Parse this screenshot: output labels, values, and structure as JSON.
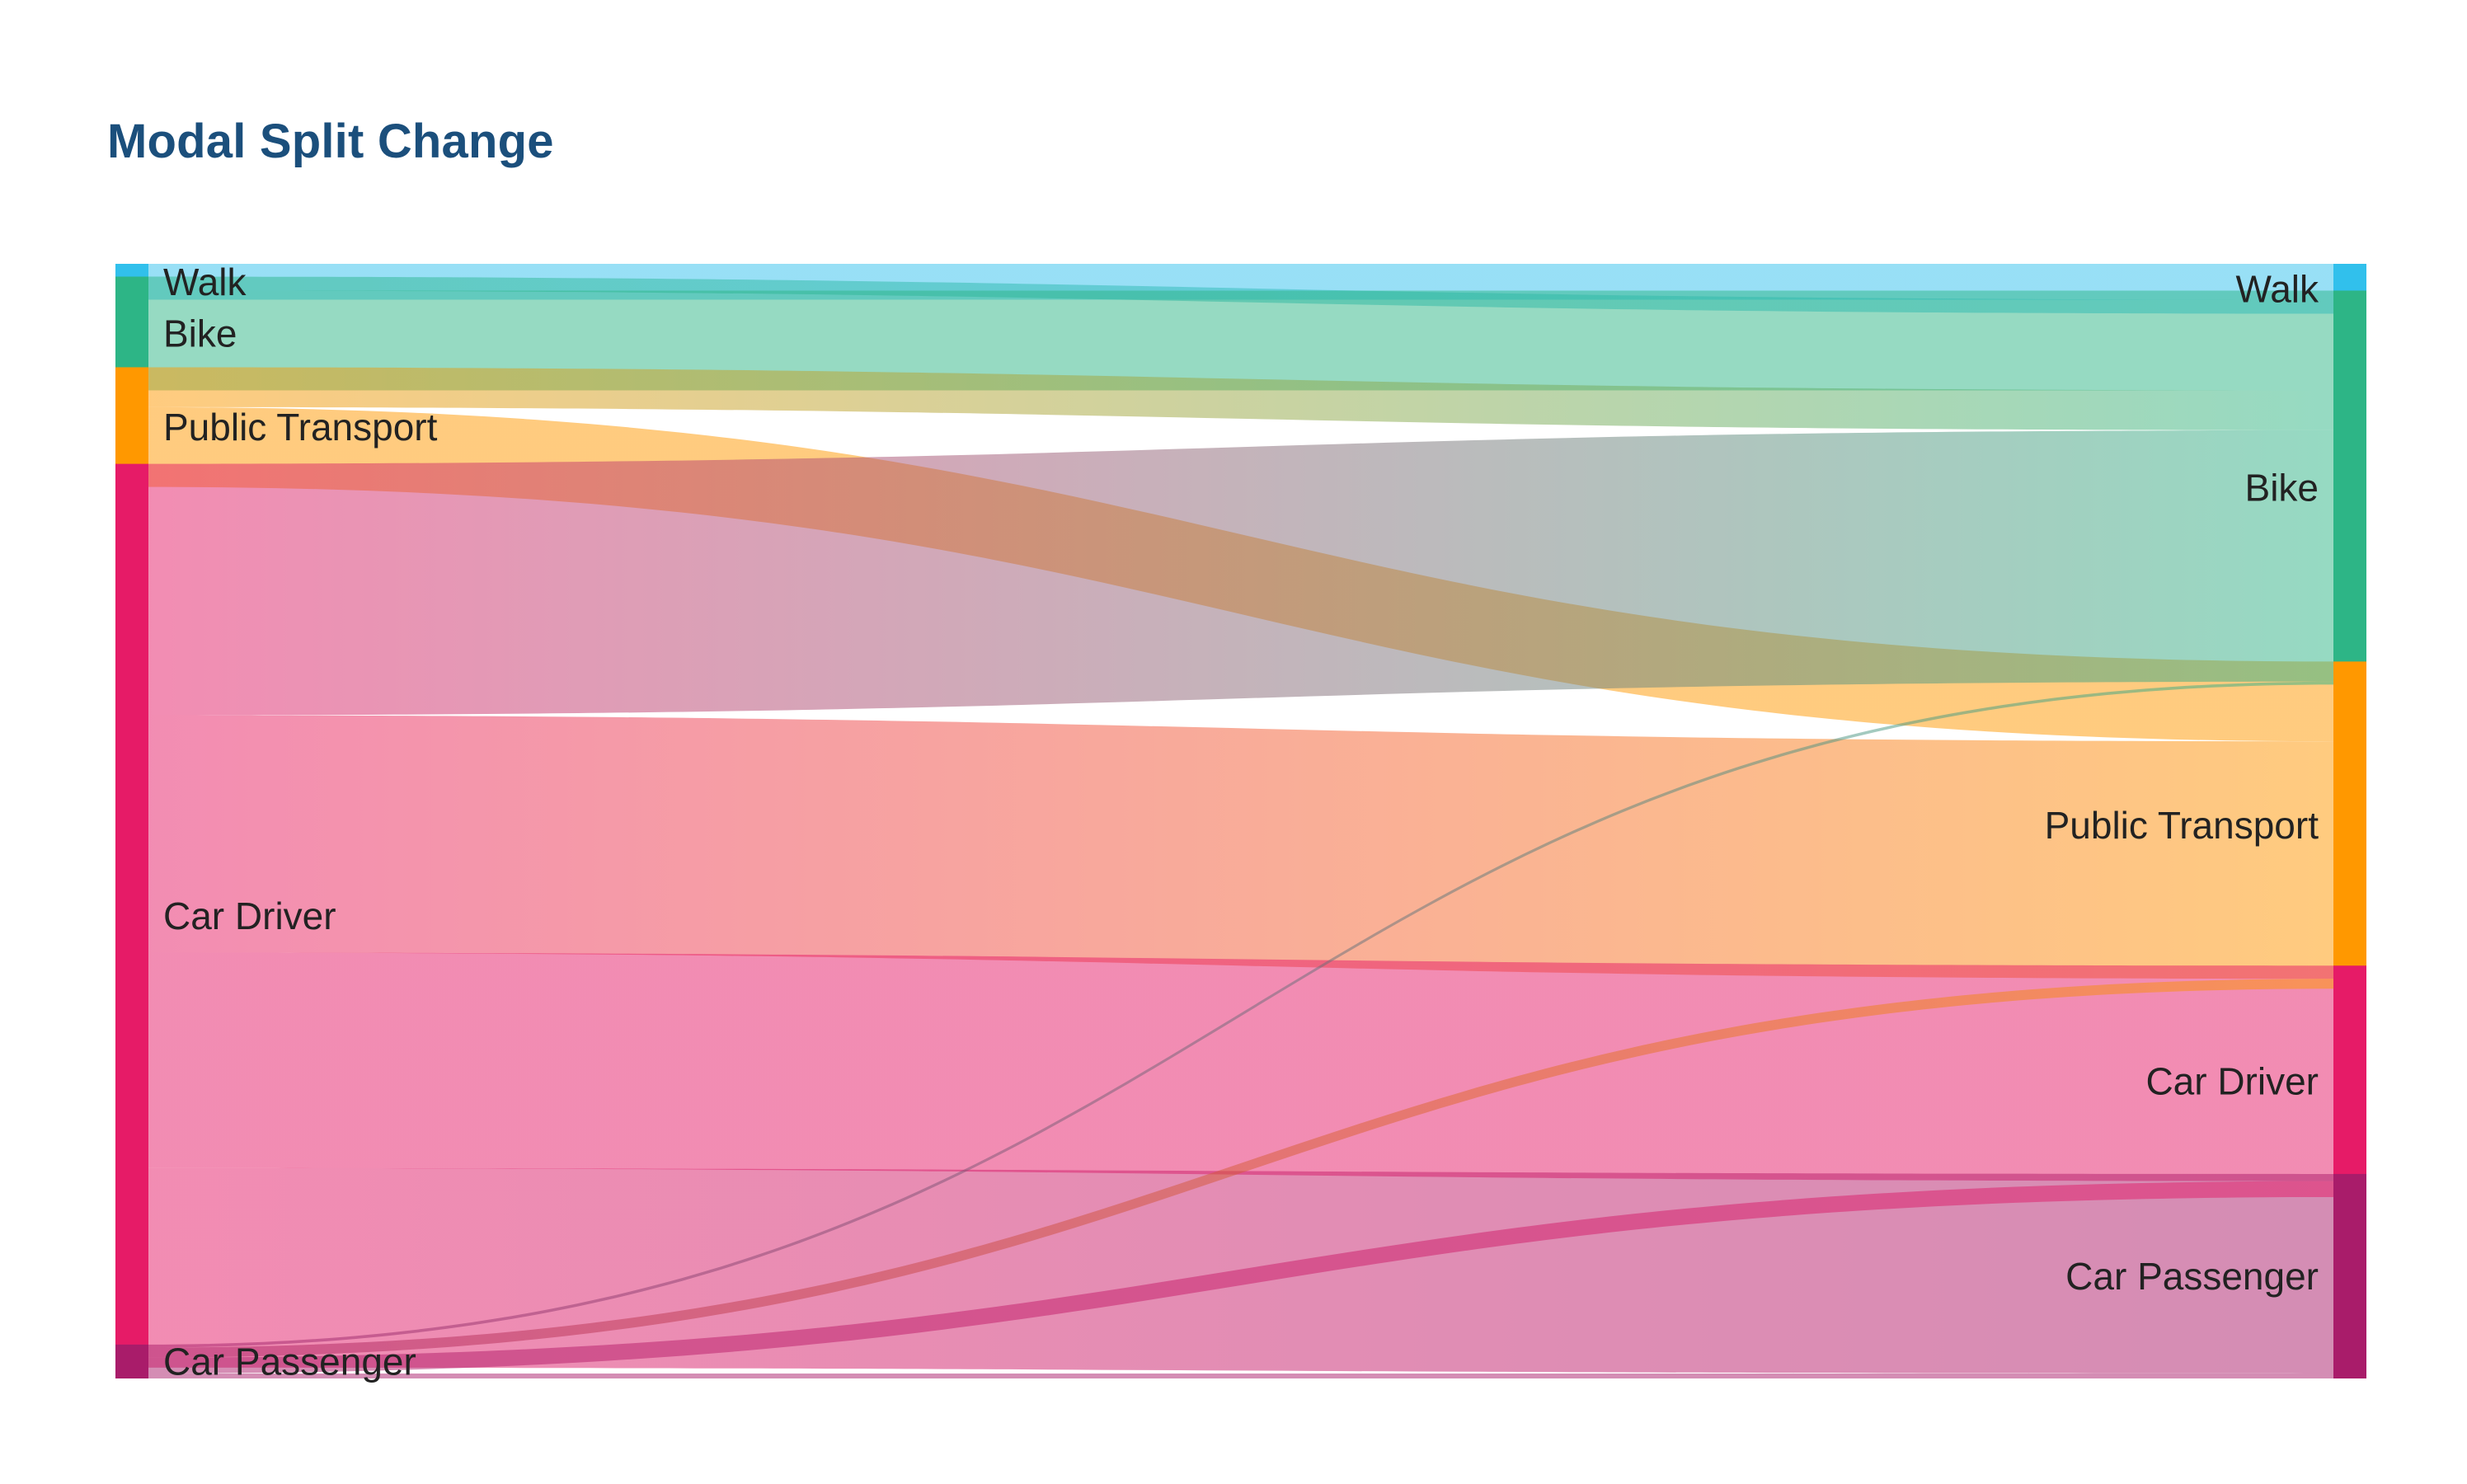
{
  "chart_data": {
    "type": "sankey",
    "title": "Modal Split Change",
    "nodes_left": [
      {
        "name": "Walk",
        "color": "#31c0ec"
      },
      {
        "name": "Bike",
        "color": "#2db586"
      },
      {
        "name": "Public Transport",
        "color": "#ff9800"
      },
      {
        "name": "Car Driver",
        "color": "#e61b67"
      },
      {
        "name": "Car Passenger",
        "color": "#a91c6a"
      }
    ],
    "nodes_right": [
      {
        "name": "Walk",
        "color": "#31c0ec"
      },
      {
        "name": "Bike",
        "color": "#2db586"
      },
      {
        "name": "Public Transport",
        "color": "#ff9800"
      },
      {
        "name": "Car Driver",
        "color": "#e61b67"
      },
      {
        "name": "Car Passenger",
        "color": "#a91c6a"
      }
    ],
    "links": [
      {
        "source": "Walk",
        "target": "Walk",
        "value": 1.8
      },
      {
        "source": "Bike",
        "target": "Walk",
        "value": 0.7
      },
      {
        "source": "Bike",
        "target": "Bike",
        "value": 5.0
      },
      {
        "source": "Public Transport",
        "target": "Bike",
        "value": 2.0
      },
      {
        "source": "Public Transport",
        "target": "Public Transport",
        "value": 4.0
      },
      {
        "source": "Car Driver",
        "target": "Bike",
        "value": 12.6
      },
      {
        "source": "Car Driver",
        "target": "Public Transport",
        "value": 11.9
      },
      {
        "source": "Car Driver",
        "target": "Car Driver",
        "value": 10.8
      },
      {
        "source": "Car Driver",
        "target": "Car Passenger",
        "value": 10.0
      },
      {
        "source": "Car Passenger",
        "target": "Bike",
        "value": 0.15
      },
      {
        "source": "Car Passenger",
        "target": "Public Transport",
        "value": 0.5
      },
      {
        "source": "Car Passenger",
        "target": "Car Driver",
        "value": 0.8
      },
      {
        "source": "Car Passenger",
        "target": "Car Passenger",
        "value": 0.25
      }
    ]
  }
}
